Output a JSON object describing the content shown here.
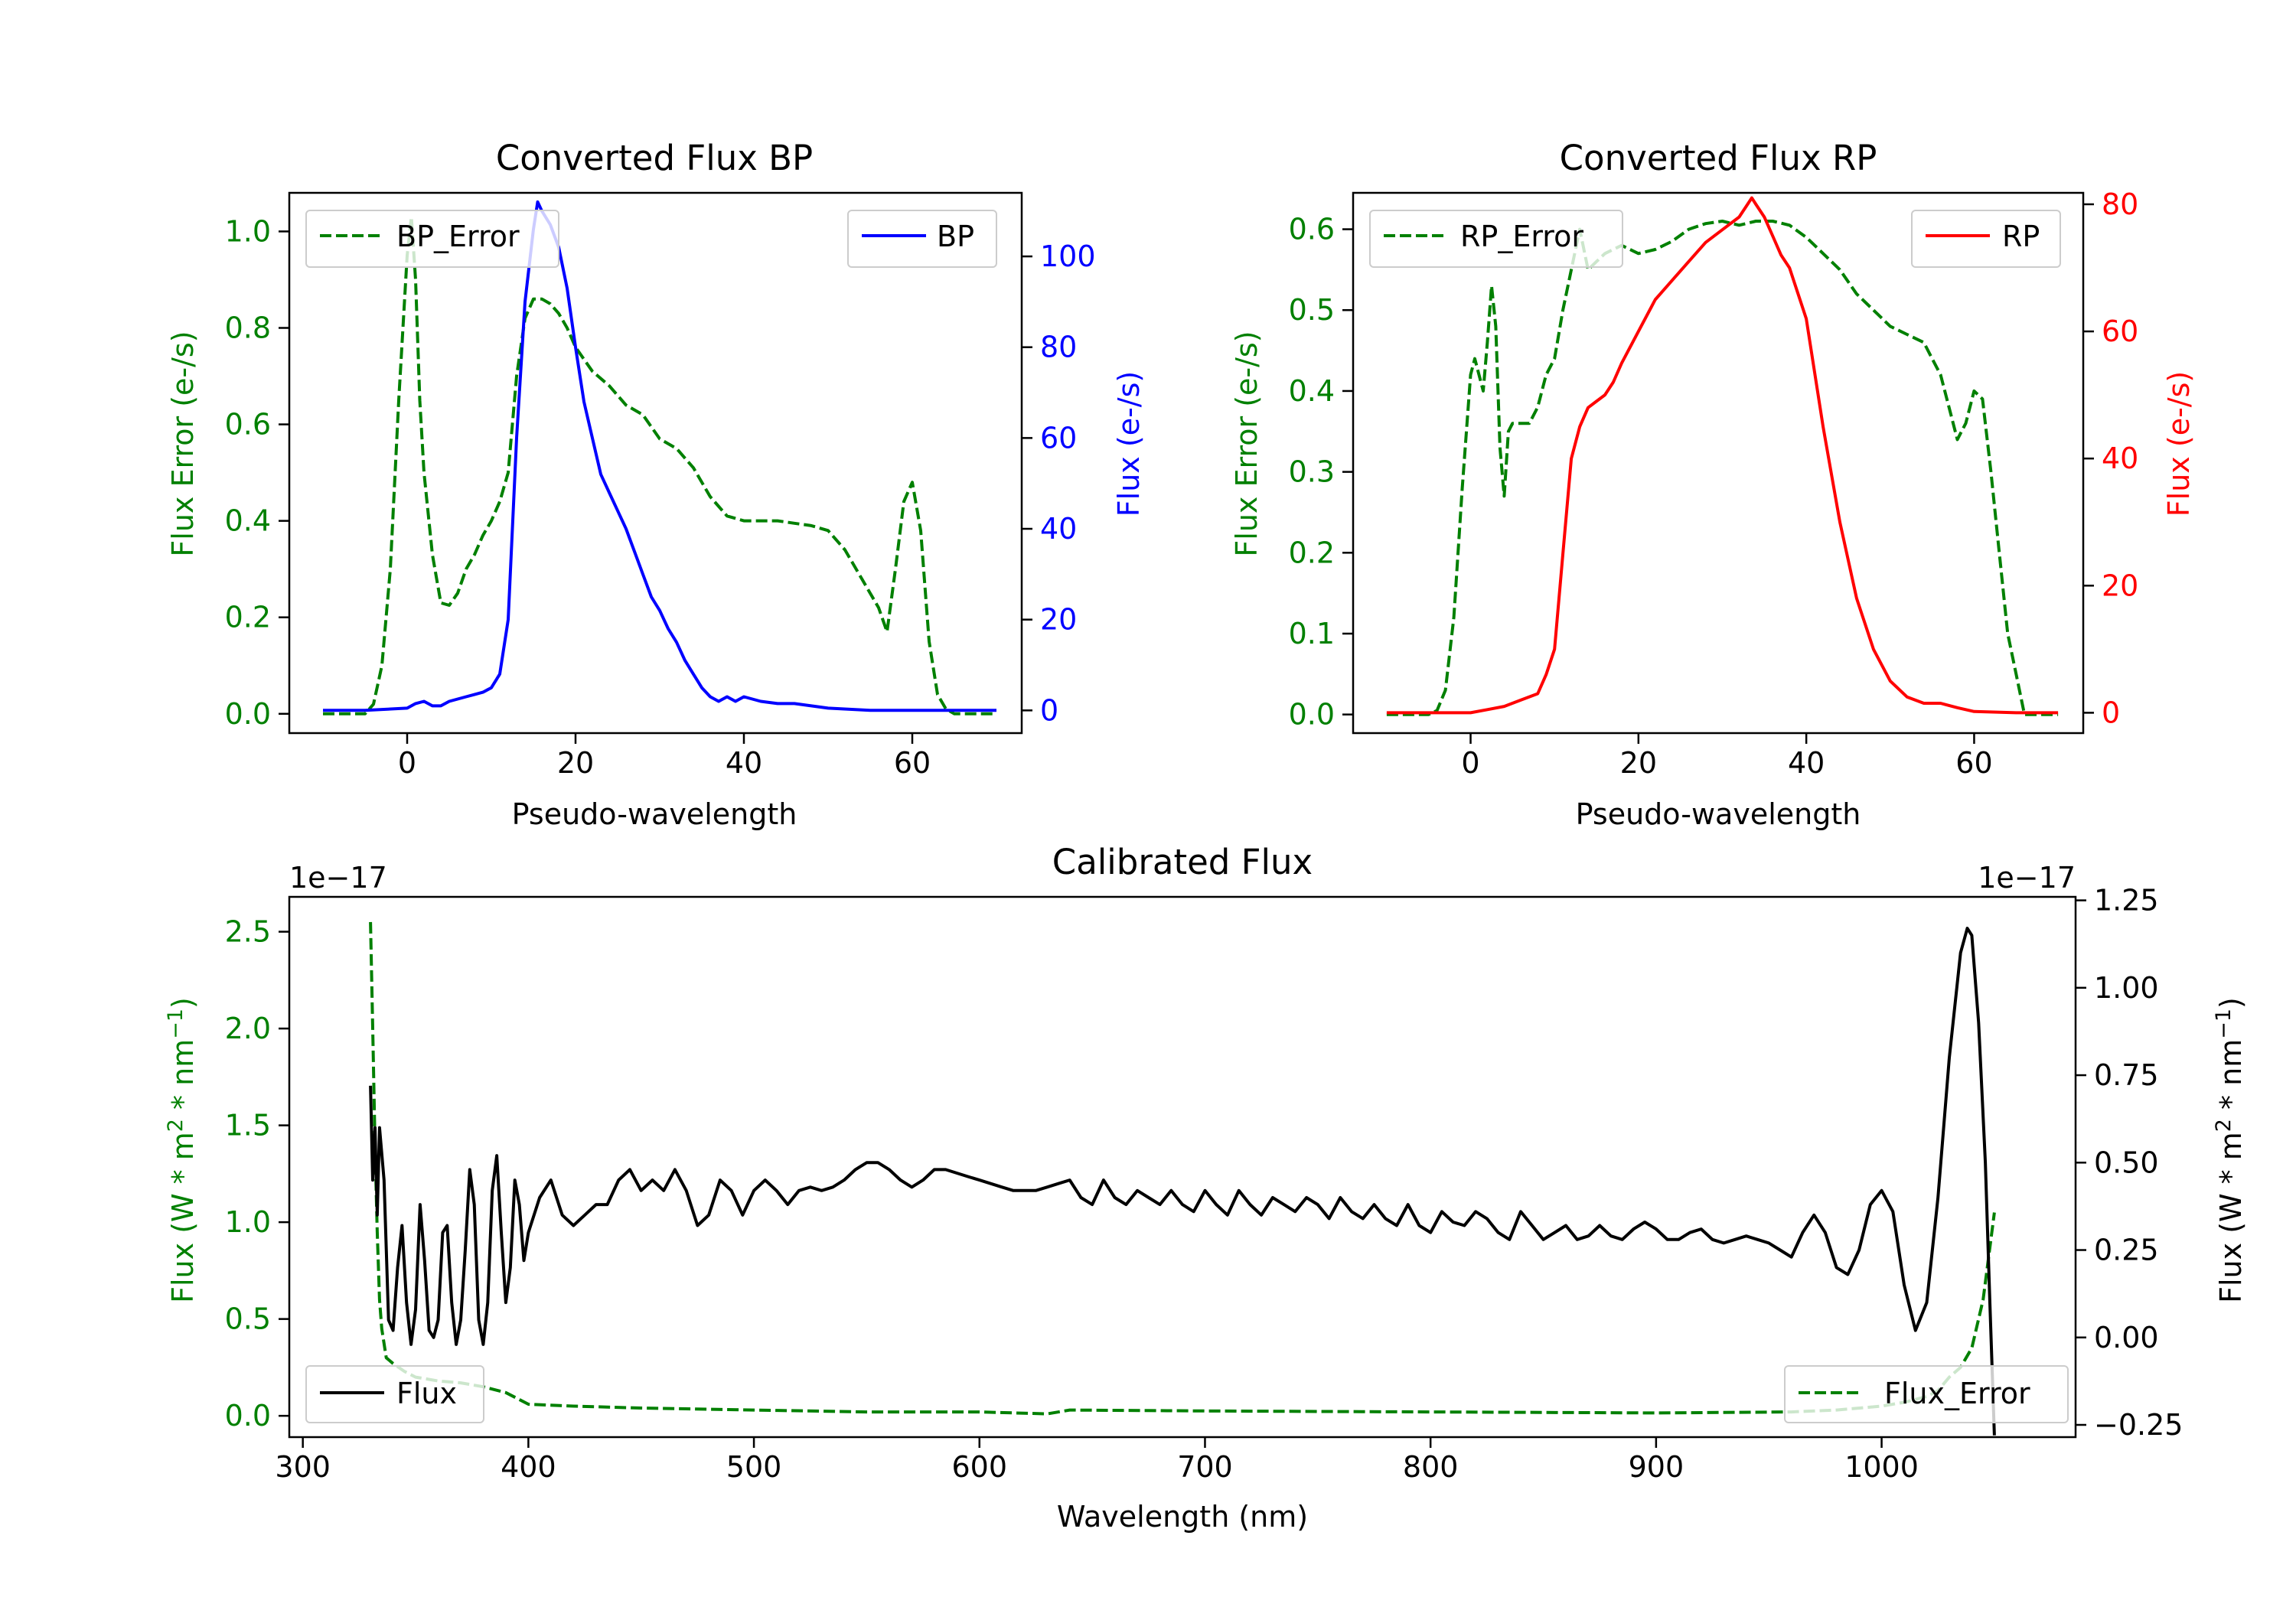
{
  "chart_data": [
    {
      "id": "bp",
      "type": "line",
      "title": "Converted Flux BP",
      "xlabel": "Pseudo-wavelength",
      "xlim": [
        -14,
        73
      ],
      "x_ticks": [
        0,
        20,
        40,
        60
      ],
      "left_axis": {
        "label": "Flux Error (e-/s)",
        "color": "#008000",
        "ylim": [
          -0.04,
          1.08
        ],
        "ticks": [
          0.0,
          0.2,
          0.4,
          0.6,
          0.8,
          1.0
        ],
        "tick_format": 1
      },
      "right_axis": {
        "label": "Flux (e-/s)",
        "color": "#0000ff",
        "ylim": [
          -5,
          114
        ],
        "ticks": [
          0,
          20,
          40,
          60,
          80,
          100
        ],
        "tick_format": 0
      },
      "legend_left": {
        "entry": "BP_Error",
        "position": "upper left"
      },
      "legend_right": {
        "entry": "BP",
        "position": "upper right"
      },
      "series": [
        {
          "name": "BP_Error",
          "axis": "left",
          "color": "#008000",
          "dash": true,
          "x": [
            -10,
            -5,
            -4,
            -3,
            -2,
            -1,
            0,
            0.5,
            1,
            1.5,
            2,
            3,
            4,
            5,
            6,
            7,
            8,
            9,
            10,
            11,
            12,
            13,
            14,
            15,
            16,
            17,
            18,
            19,
            20,
            22,
            24,
            26,
            28,
            30,
            32,
            34,
            36,
            38,
            40,
            42,
            44,
            46,
            48,
            50,
            52,
            54,
            55,
            56,
            57,
            58,
            59,
            60,
            61,
            62,
            63,
            64,
            65,
            66,
            68,
            70
          ],
          "y": [
            0.0,
            0.0,
            0.02,
            0.1,
            0.3,
            0.65,
            0.95,
            1.03,
            0.9,
            0.65,
            0.5,
            0.33,
            0.23,
            0.225,
            0.25,
            0.3,
            0.33,
            0.37,
            0.4,
            0.44,
            0.5,
            0.7,
            0.82,
            0.86,
            0.86,
            0.85,
            0.83,
            0.8,
            0.76,
            0.71,
            0.68,
            0.64,
            0.62,
            0.57,
            0.55,
            0.51,
            0.45,
            0.41,
            0.4,
            0.4,
            0.4,
            0.395,
            0.39,
            0.38,
            0.34,
            0.28,
            0.25,
            0.22,
            0.17,
            0.3,
            0.44,
            0.48,
            0.38,
            0.15,
            0.04,
            0.01,
            0.0,
            0.0,
            0.0,
            0.0
          ]
        },
        {
          "name": "BP",
          "axis": "right",
          "color": "#0000ff",
          "dash": false,
          "x": [
            -10,
            -5,
            0,
            1,
            2,
            3,
            4,
            5,
            6,
            7,
            8,
            9,
            10,
            11,
            12,
            13,
            14,
            15,
            15.5,
            16,
            17,
            18,
            19,
            20,
            21,
            22,
            23,
            24,
            25,
            26,
            27,
            28,
            29,
            30,
            31,
            32,
            33,
            34,
            35,
            36,
            37,
            38,
            39,
            40,
            42,
            44,
            46,
            48,
            50,
            55,
            60,
            65,
            70
          ],
          "y": [
            0,
            0,
            0.5,
            1.5,
            2,
            1,
            1,
            2,
            2.5,
            3,
            3.5,
            4,
            5,
            8,
            20,
            60,
            90,
            106,
            112,
            110,
            107,
            102,
            93,
            80,
            68,
            60,
            52,
            48,
            44,
            40,
            35,
            30,
            25,
            22,
            18,
            15,
            11,
            8,
            5,
            3,
            2,
            3,
            2,
            3,
            2,
            1.5,
            1.5,
            1,
            0.5,
            0,
            0,
            0,
            0
          ]
        }
      ]
    },
    {
      "id": "rp",
      "type": "line",
      "title": "Converted Flux RP",
      "xlabel": "Pseudo-wavelength",
      "xlim": [
        -14,
        73
      ],
      "x_ticks": [
        0,
        20,
        40,
        60
      ],
      "left_axis": {
        "label": "Flux Error (e-/s)",
        "color": "#008000",
        "ylim": [
          -0.023,
          0.645
        ],
        "ticks": [
          0.0,
          0.1,
          0.2,
          0.3,
          0.4,
          0.5,
          0.6
        ],
        "tick_format": 1
      },
      "right_axis": {
        "label": "Flux (e-/s)",
        "color": "#ff0000",
        "ylim": [
          -3.2,
          81.8
        ],
        "ticks": [
          0,
          20,
          40,
          60,
          80
        ],
        "tick_format": 0
      },
      "legend_left": {
        "entry": "RP_Error",
        "position": "upper left"
      },
      "legend_right": {
        "entry": "RP",
        "position": "upper right"
      },
      "series": [
        {
          "name": "RP_Error",
          "axis": "left",
          "color": "#008000",
          "dash": true,
          "x": [
            -10,
            -5,
            -4,
            -3,
            -2,
            -1,
            0,
            0.5,
            1,
            1.5,
            2,
            2.5,
            3,
            3.5,
            4,
            4.5,
            5,
            6,
            7,
            8,
            9,
            10,
            11,
            12,
            13,
            14,
            15,
            16,
            18,
            20,
            22,
            24,
            26,
            28,
            30,
            32,
            34,
            36,
            38,
            40,
            42,
            44,
            46,
            48,
            50,
            52,
            54,
            55,
            56,
            57,
            58,
            59,
            60,
            61,
            62,
            63,
            64,
            65,
            66,
            68,
            70
          ],
          "y": [
            0.0,
            0.0,
            0.005,
            0.03,
            0.12,
            0.28,
            0.42,
            0.44,
            0.42,
            0.4,
            0.46,
            0.53,
            0.48,
            0.33,
            0.27,
            0.35,
            0.36,
            0.36,
            0.36,
            0.38,
            0.42,
            0.44,
            0.5,
            0.55,
            0.6,
            0.55,
            0.56,
            0.57,
            0.58,
            0.57,
            0.575,
            0.585,
            0.6,
            0.607,
            0.61,
            0.605,
            0.61,
            0.61,
            0.605,
            0.59,
            0.57,
            0.55,
            0.52,
            0.5,
            0.48,
            0.47,
            0.46,
            0.44,
            0.42,
            0.38,
            0.34,
            0.36,
            0.4,
            0.39,
            0.3,
            0.2,
            0.1,
            0.05,
            0.0,
            0.0,
            0.0
          ]
        },
        {
          "name": "RP",
          "axis": "right",
          "color": "#ff0000",
          "dash": false,
          "x": [
            -10,
            -5,
            0,
            2,
            4,
            6,
            8,
            9,
            10,
            11,
            12,
            13,
            14,
            15,
            16,
            17,
            18,
            20,
            22,
            24,
            26,
            28,
            30,
            32,
            33,
            33.5,
            34,
            35,
            36,
            37,
            38,
            40,
            42,
            44,
            46,
            48,
            50,
            52,
            54,
            56,
            58,
            60,
            65,
            70
          ],
          "y": [
            0,
            0,
            0,
            0.5,
            1,
            2,
            3,
            6,
            10,
            25,
            40,
            45,
            48,
            49,
            50,
            52,
            55,
            60,
            65,
            68,
            71,
            74,
            76,
            78,
            80,
            81,
            80,
            78,
            75,
            72,
            70,
            62,
            45,
            30,
            18,
            10,
            5,
            2.5,
            1.5,
            1.5,
            0.8,
            0.2,
            0,
            0
          ]
        }
      ]
    },
    {
      "id": "cal",
      "type": "line",
      "title": "Calibrated Flux",
      "xlabel": "Wavelength (nm)",
      "xlim": [
        294,
        1086
      ],
      "x_ticks": [
        300,
        400,
        500,
        600,
        700,
        800,
        900,
        1000
      ],
      "left_axis": {
        "label": "Flux (W * m",
        "sup1": "2",
        "label_mid": " * nm",
        "sup2": "−1",
        "label_end": ")",
        "color": "#008000",
        "ylim": [
          -0.11,
          2.68
        ],
        "ticks": [
          0.0,
          0.5,
          1.0,
          1.5,
          2.0,
          2.5
        ],
        "tick_format": 1,
        "offset_text": "1e−17"
      },
      "right_axis": {
        "label": "Flux (W * m",
        "sup1": "2",
        "label_mid": " * nm",
        "sup2": "−1",
        "label_end": ")",
        "color": "#000000",
        "ylim": [
          -0.285,
          1.26
        ],
        "ticks": [
          -0.25,
          0.0,
          0.25,
          0.5,
          0.75,
          1.0,
          1.25
        ],
        "tick_format": 2,
        "offset_text": "1e−17"
      },
      "legend_left": {
        "entry": "Flux",
        "position": "lower left"
      },
      "legend_right": {
        "entry": "Flux_Error",
        "position": "lower right"
      },
      "series": [
        {
          "name": "Flux_Error",
          "axis": "left",
          "color": "#008000",
          "dash": true,
          "x": [
            330,
            331,
            332,
            333,
            334,
            335,
            337,
            340,
            345,
            350,
            360,
            370,
            380,
            390,
            400,
            420,
            450,
            500,
            550,
            600,
            630,
            640,
            700,
            800,
            900,
            960,
            980,
            1000,
            1010,
            1020,
            1025,
            1030,
            1035,
            1040,
            1045,
            1050
          ],
          "y": [
            2.55,
            2.0,
            1.4,
            0.95,
            0.6,
            0.45,
            0.3,
            0.27,
            0.23,
            0.2,
            0.18,
            0.17,
            0.15,
            0.12,
            0.06,
            0.05,
            0.04,
            0.03,
            0.02,
            0.02,
            0.01,
            0.03,
            0.025,
            0.02,
            0.015,
            0.02,
            0.03,
            0.05,
            0.07,
            0.1,
            0.13,
            0.2,
            0.25,
            0.35,
            0.6,
            1.05
          ]
        },
        {
          "name": "Flux",
          "axis": "right",
          "color": "#000000",
          "dash": false,
          "x": [
            330,
            331,
            332,
            333,
            334,
            336,
            338,
            340,
            342,
            344,
            346,
            348,
            350,
            352,
            354,
            356,
            358,
            360,
            362,
            364,
            366,
            368,
            370,
            372,
            374,
            376,
            378,
            380,
            382,
            384,
            386,
            388,
            390,
            392,
            394,
            396,
            398,
            400,
            405,
            410,
            415,
            420,
            425,
            430,
            435,
            440,
            445,
            450,
            455,
            460,
            465,
            470,
            475,
            480,
            485,
            490,
            495,
            500,
            505,
            510,
            515,
            520,
            525,
            530,
            535,
            540,
            545,
            550,
            555,
            560,
            565,
            570,
            575,
            580,
            585,
            590,
            595,
            600,
            605,
            610,
            615,
            620,
            625,
            630,
            635,
            640,
            645,
            650,
            655,
            660,
            665,
            670,
            675,
            680,
            685,
            690,
            695,
            700,
            705,
            710,
            715,
            720,
            725,
            730,
            735,
            740,
            745,
            750,
            755,
            760,
            765,
            770,
            775,
            780,
            785,
            790,
            795,
            800,
            805,
            810,
            815,
            820,
            825,
            830,
            835,
            840,
            845,
            850,
            855,
            860,
            865,
            870,
            875,
            880,
            885,
            890,
            895,
            900,
            905,
            910,
            915,
            920,
            925,
            930,
            935,
            940,
            945,
            950,
            955,
            960,
            965,
            970,
            975,
            980,
            985,
            990,
            995,
            1000,
            1005,
            1010,
            1015,
            1020,
            1025,
            1030,
            1035,
            1038,
            1040,
            1043,
            1046,
            1048,
            1050
          ],
          "y": [
            0.72,
            0.45,
            0.6,
            0.35,
            0.6,
            0.45,
            0.05,
            0.02,
            0.2,
            0.32,
            0.1,
            -0.02,
            0.08,
            0.38,
            0.22,
            0.02,
            0.0,
            0.05,
            0.3,
            0.32,
            0.1,
            -0.02,
            0.05,
            0.25,
            0.48,
            0.38,
            0.05,
            -0.02,
            0.1,
            0.42,
            0.52,
            0.3,
            0.1,
            0.2,
            0.45,
            0.38,
            0.22,
            0.3,
            0.4,
            0.45,
            0.35,
            0.32,
            0.35,
            0.38,
            0.38,
            0.45,
            0.48,
            0.42,
            0.45,
            0.42,
            0.48,
            0.42,
            0.32,
            0.35,
            0.45,
            0.42,
            0.35,
            0.42,
            0.45,
            0.42,
            0.38,
            0.42,
            0.43,
            0.42,
            0.43,
            0.45,
            0.48,
            0.5,
            0.5,
            0.48,
            0.45,
            0.43,
            0.45,
            0.48,
            0.48,
            0.47,
            0.46,
            0.45,
            0.44,
            0.43,
            0.42,
            0.42,
            0.42,
            0.43,
            0.44,
            0.45,
            0.4,
            0.38,
            0.45,
            0.4,
            0.38,
            0.42,
            0.4,
            0.38,
            0.42,
            0.38,
            0.36,
            0.42,
            0.38,
            0.35,
            0.42,
            0.38,
            0.35,
            0.4,
            0.38,
            0.36,
            0.4,
            0.38,
            0.34,
            0.4,
            0.36,
            0.34,
            0.38,
            0.34,
            0.32,
            0.38,
            0.32,
            0.3,
            0.36,
            0.33,
            0.32,
            0.36,
            0.34,
            0.3,
            0.28,
            0.36,
            0.32,
            0.28,
            0.3,
            0.32,
            0.28,
            0.29,
            0.32,
            0.29,
            0.28,
            0.31,
            0.33,
            0.31,
            0.28,
            0.28,
            0.3,
            0.31,
            0.28,
            0.27,
            0.28,
            0.29,
            0.28,
            0.27,
            0.25,
            0.23,
            0.3,
            0.35,
            0.3,
            0.2,
            0.18,
            0.25,
            0.38,
            0.42,
            0.36,
            0.15,
            0.02,
            0.1,
            0.4,
            0.8,
            1.1,
            1.17,
            1.15,
            0.9,
            0.5,
            0.1,
            -0.28
          ]
        }
      ]
    }
  ]
}
